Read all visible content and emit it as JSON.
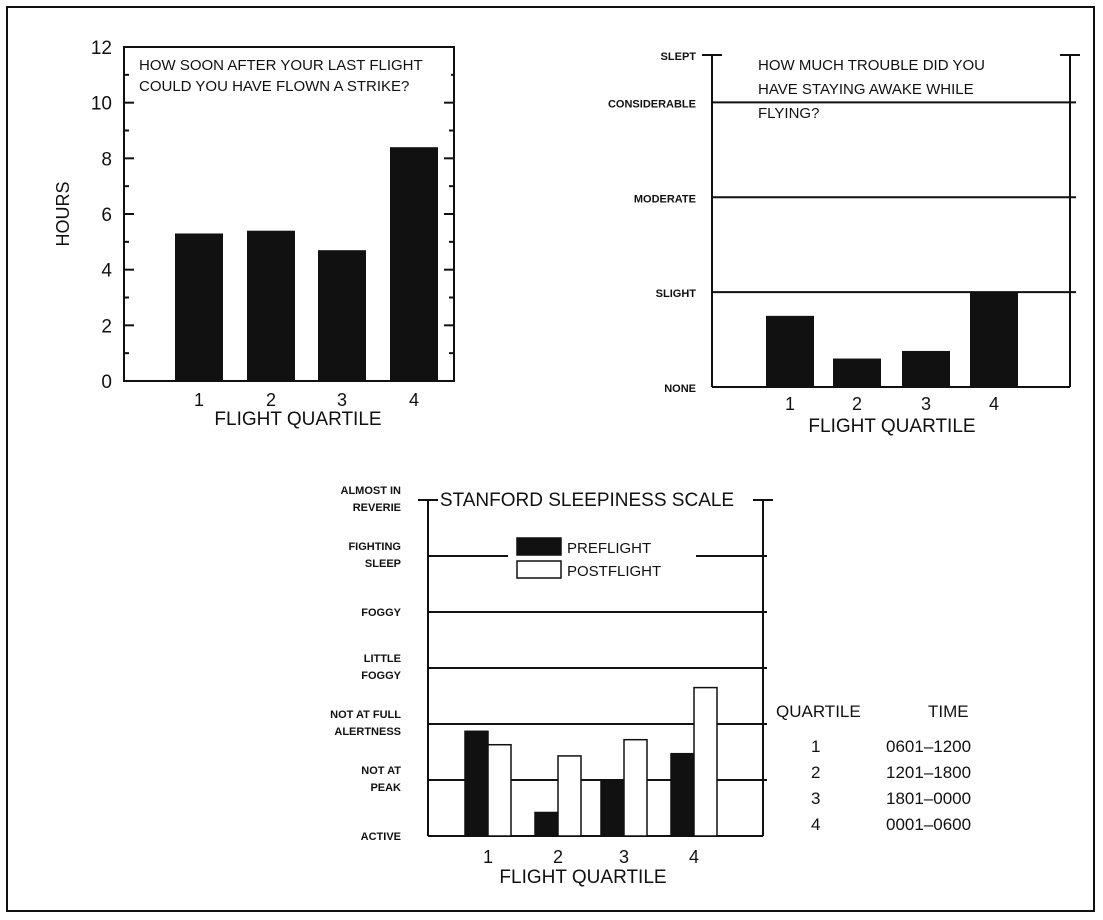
{
  "chart_data": [
    {
      "type": "bar",
      "title": "HOW SOON AFTER YOUR LAST FLIGHT COULD YOU HAVE FLOWN A STRIKE?",
      "title_lines": [
        "HOW SOON AFTER YOUR LAST FLIGHT",
        "COULD YOU HAVE FLOWN A STRIKE?"
      ],
      "xlabel": "FLIGHT QUARTILE",
      "ylabel": "HOURS",
      "categories": [
        "1",
        "2",
        "3",
        "4"
      ],
      "values": [
        5.3,
        5.4,
        4.7,
        8.4
      ],
      "ylim": [
        0,
        12
      ],
      "yticks": [
        "0",
        "2",
        "4",
        "6",
        "8",
        "10",
        "12"
      ],
      "bar_color": "#111111"
    },
    {
      "type": "bar",
      "title": "HOW MUCH TROUBLE DID YOU HAVE STAYING AWAKE WHILE FLYING?",
      "title_lines": [
        "HOW MUCH TROUBLE DID YOU",
        "HAVE STAYING AWAKE WHILE",
        "FLYING?"
      ],
      "xlabel": "FLIGHT QUARTILE",
      "categories": [
        "1",
        "2",
        "3",
        "4"
      ],
      "values": [
        0.75,
        0.3,
        0.38,
        1.0
      ],
      "ylim": [
        0,
        3.5
      ],
      "levels": [
        "NONE",
        "SLIGHT",
        "MODERATE",
        "CONSIDERABLE",
        "SLEPT"
      ],
      "grid": true,
      "bar_color": "#111111"
    },
    {
      "type": "bar",
      "title": "STANFORD SLEEPINESS SCALE",
      "xlabel": "FLIGHT QUARTILE",
      "categories": [
        "1",
        "2",
        "3",
        "4"
      ],
      "levels": [
        [
          "ACTIVE"
        ],
        [
          "NOT AT",
          "PEAK"
        ],
        [
          "NOT AT FULL",
          "ALERTNESS"
        ],
        [
          "LITTLE",
          "FOGGY"
        ],
        [
          "FOGGY"
        ],
        [
          "FIGHTING",
          "SLEEP"
        ],
        [
          "ALMOST IN",
          "REVERIE"
        ]
      ],
      "ylim": [
        0,
        6
      ],
      "grid": true,
      "legend_position": "top-center",
      "series": [
        {
          "name": "PREFLIGHT",
          "values": [
            1.87,
            0.42,
            1.0,
            1.47
          ],
          "color": "#111111"
        },
        {
          "name": "POSTFLIGHT",
          "values": [
            1.63,
            1.43,
            1.72,
            2.65
          ],
          "color": "#ffffff"
        }
      ]
    }
  ],
  "quartile_table": {
    "headers": [
      "QUARTILE",
      "TIME"
    ],
    "rows": [
      [
        "1",
        "0601–1200"
      ],
      [
        "2",
        "1201–1800"
      ],
      [
        "3",
        "1801–0000"
      ],
      [
        "4",
        "0001–0600"
      ]
    ]
  }
}
